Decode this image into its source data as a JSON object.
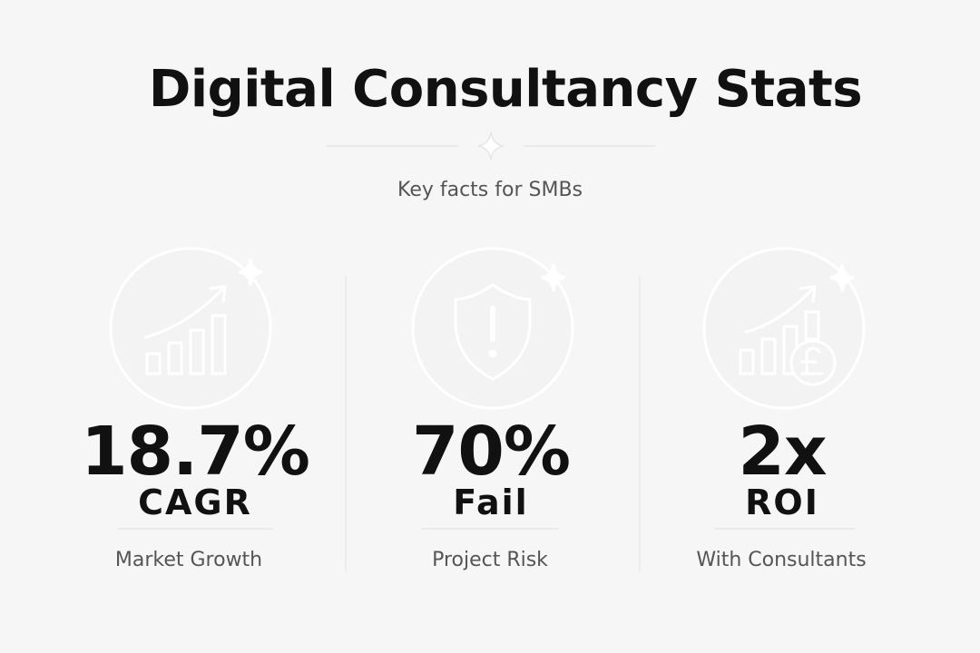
{
  "header": {
    "title": "Digital Consultancy Stats",
    "subtitle": "Key facts for SMBs"
  },
  "stats": [
    {
      "value": "18.7%",
      "unit": "CAGR",
      "label": "Market Growth"
    },
    {
      "value": "70%",
      "unit": "Fail",
      "label": "Project Risk"
    },
    {
      "value": "2x",
      "unit": "ROI",
      "label": "With Consultants"
    }
  ]
}
